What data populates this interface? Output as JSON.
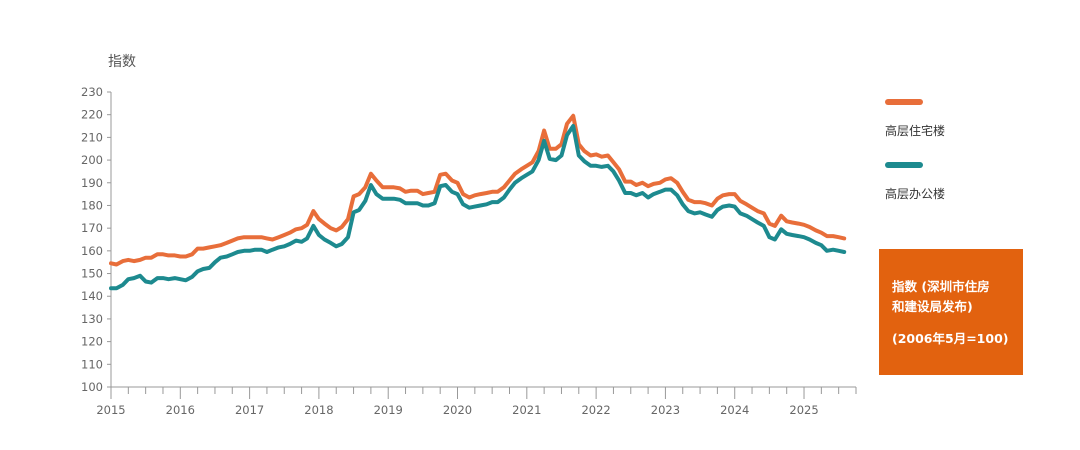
{
  "chart_data": {
    "type": "line",
    "ylabel": "指数",
    "ylim": [
      100,
      230
    ],
    "yticks": [
      100,
      110,
      120,
      130,
      140,
      150,
      160,
      170,
      180,
      190,
      200,
      210,
      220,
      230
    ],
    "xticks": [
      "2015",
      "2016",
      "2017",
      "2018",
      "2019",
      "2020",
      "2021",
      "2022",
      "2023",
      "2024",
      "2025"
    ],
    "x_start": 2015.0,
    "x_end": 2025.75,
    "series": [
      {
        "name": "高层住宅楼",
        "color": "#e86e3a",
        "points": [
          [
            2015.0,
            154.5
          ],
          [
            2015.08,
            154
          ],
          [
            2015.17,
            155.5
          ],
          [
            2015.25,
            156
          ],
          [
            2015.33,
            155.5
          ],
          [
            2015.42,
            156
          ],
          [
            2015.5,
            157
          ],
          [
            2015.58,
            157
          ],
          [
            2015.67,
            158.5
          ],
          [
            2015.75,
            158.5
          ],
          [
            2015.83,
            158
          ],
          [
            2015.92,
            158
          ],
          [
            2016.0,
            157.5
          ],
          [
            2016.08,
            157.5
          ],
          [
            2016.17,
            158.5
          ],
          [
            2016.25,
            161
          ],
          [
            2016.33,
            161
          ],
          [
            2016.42,
            161.5
          ],
          [
            2016.5,
            162
          ],
          [
            2016.58,
            162.5
          ],
          [
            2016.67,
            163.5
          ],
          [
            2016.75,
            164.5
          ],
          [
            2016.83,
            165.5
          ],
          [
            2016.92,
            166
          ],
          [
            2017.0,
            166
          ],
          [
            2017.08,
            166
          ],
          [
            2017.17,
            166
          ],
          [
            2017.25,
            165.5
          ],
          [
            2017.33,
            165
          ],
          [
            2017.42,
            166
          ],
          [
            2017.5,
            167
          ],
          [
            2017.58,
            168
          ],
          [
            2017.67,
            169.5
          ],
          [
            2017.75,
            170
          ],
          [
            2017.83,
            171.5
          ],
          [
            2017.92,
            177.5
          ],
          [
            2018.0,
            174
          ],
          [
            2018.08,
            172
          ],
          [
            2018.17,
            170
          ],
          [
            2018.25,
            169
          ],
          [
            2018.33,
            170.5
          ],
          [
            2018.42,
            174
          ],
          [
            2018.5,
            184
          ],
          [
            2018.58,
            185
          ],
          [
            2018.67,
            188
          ],
          [
            2018.75,
            194
          ],
          [
            2018.83,
            191
          ],
          [
            2018.92,
            188
          ],
          [
            2019.0,
            188
          ],
          [
            2019.08,
            188
          ],
          [
            2019.17,
            187.5
          ],
          [
            2019.25,
            186
          ],
          [
            2019.33,
            186.5
          ],
          [
            2019.42,
            186.5
          ],
          [
            2019.5,
            185
          ],
          [
            2019.58,
            185.5
          ],
          [
            2019.67,
            186
          ],
          [
            2019.75,
            193.5
          ],
          [
            2019.83,
            194
          ],
          [
            2019.92,
            191
          ],
          [
            2020.0,
            190
          ],
          [
            2020.08,
            185
          ],
          [
            2020.17,
            183.5
          ],
          [
            2020.25,
            184.5
          ],
          [
            2020.33,
            185
          ],
          [
            2020.42,
            185.5
          ],
          [
            2020.5,
            186
          ],
          [
            2020.58,
            186
          ],
          [
            2020.67,
            188
          ],
          [
            2020.75,
            191
          ],
          [
            2020.83,
            194
          ],
          [
            2020.92,
            196
          ],
          [
            2021.0,
            197.5
          ],
          [
            2021.08,
            199
          ],
          [
            2021.17,
            204
          ],
          [
            2021.25,
            213
          ],
          [
            2021.33,
            205
          ],
          [
            2021.42,
            205
          ],
          [
            2021.5,
            207
          ],
          [
            2021.58,
            216
          ],
          [
            2021.67,
            219.5
          ],
          [
            2021.75,
            207
          ],
          [
            2021.83,
            204
          ],
          [
            2021.92,
            202
          ],
          [
            2022.0,
            202.5
          ],
          [
            2022.08,
            201.5
          ],
          [
            2022.17,
            202
          ],
          [
            2022.25,
            199
          ],
          [
            2022.33,
            196
          ],
          [
            2022.42,
            190.5
          ],
          [
            2022.5,
            190.5
          ],
          [
            2022.58,
            189
          ],
          [
            2022.67,
            190
          ],
          [
            2022.75,
            188.5
          ],
          [
            2022.83,
            189.5
          ],
          [
            2022.92,
            190
          ],
          [
            2023.0,
            191.5
          ],
          [
            2023.08,
            192
          ],
          [
            2023.17,
            190
          ],
          [
            2023.25,
            186
          ],
          [
            2023.33,
            182.5
          ],
          [
            2023.42,
            181.5
          ],
          [
            2023.5,
            181.5
          ],
          [
            2023.58,
            181
          ],
          [
            2023.67,
            180
          ],
          [
            2023.75,
            183
          ],
          [
            2023.83,
            184.5
          ],
          [
            2023.92,
            185
          ],
          [
            2024.0,
            185
          ],
          [
            2024.08,
            182
          ],
          [
            2024.17,
            180.5
          ],
          [
            2024.25,
            179
          ],
          [
            2024.33,
            177.5
          ],
          [
            2024.42,
            176.5
          ],
          [
            2024.5,
            172
          ],
          [
            2024.58,
            171
          ],
          [
            2024.67,
            175.5
          ],
          [
            2024.75,
            173
          ],
          [
            2024.83,
            172.5
          ],
          [
            2024.92,
            172
          ],
          [
            2025.0,
            171.5
          ],
          [
            2025.08,
            170.5
          ],
          [
            2025.17,
            169
          ],
          [
            2025.25,
            168
          ],
          [
            2025.33,
            166.5
          ],
          [
            2025.42,
            166.5
          ],
          [
            2025.5,
            166
          ],
          [
            2025.58,
            165.5
          ]
        ]
      },
      {
        "name": "高层办公楼",
        "color": "#1d8a8f",
        "points": [
          [
            2015.0,
            143.5
          ],
          [
            2015.08,
            143.5
          ],
          [
            2015.17,
            145
          ],
          [
            2015.25,
            147.5
          ],
          [
            2015.33,
            148
          ],
          [
            2015.42,
            149
          ],
          [
            2015.5,
            146.5
          ],
          [
            2015.58,
            146
          ],
          [
            2015.67,
            148
          ],
          [
            2015.75,
            148
          ],
          [
            2015.83,
            147.5
          ],
          [
            2015.92,
            148
          ],
          [
            2016.0,
            147.5
          ],
          [
            2016.08,
            147
          ],
          [
            2016.17,
            148.5
          ],
          [
            2016.25,
            151
          ],
          [
            2016.33,
            152
          ],
          [
            2016.42,
            152.5
          ],
          [
            2016.5,
            155
          ],
          [
            2016.58,
            157
          ],
          [
            2016.67,
            157.5
          ],
          [
            2016.75,
            158.5
          ],
          [
            2016.83,
            159.5
          ],
          [
            2016.92,
            160
          ],
          [
            2017.0,
            160
          ],
          [
            2017.08,
            160.5
          ],
          [
            2017.17,
            160.5
          ],
          [
            2017.25,
            159.5
          ],
          [
            2017.33,
            160.5
          ],
          [
            2017.42,
            161.5
          ],
          [
            2017.5,
            162
          ],
          [
            2017.58,
            163
          ],
          [
            2017.67,
            164.5
          ],
          [
            2017.75,
            164
          ],
          [
            2017.83,
            165.5
          ],
          [
            2017.92,
            171
          ],
          [
            2018.0,
            167
          ],
          [
            2018.08,
            165
          ],
          [
            2018.17,
            163.5
          ],
          [
            2018.25,
            162
          ],
          [
            2018.33,
            163
          ],
          [
            2018.42,
            166
          ],
          [
            2018.5,
            177
          ],
          [
            2018.58,
            178
          ],
          [
            2018.67,
            182
          ],
          [
            2018.75,
            189
          ],
          [
            2018.83,
            185
          ],
          [
            2018.92,
            183
          ],
          [
            2019.0,
            183
          ],
          [
            2019.08,
            183
          ],
          [
            2019.17,
            182.5
          ],
          [
            2019.25,
            181
          ],
          [
            2019.33,
            181
          ],
          [
            2019.42,
            181
          ],
          [
            2019.5,
            180
          ],
          [
            2019.58,
            180
          ],
          [
            2019.67,
            181
          ],
          [
            2019.75,
            188.5
          ],
          [
            2019.83,
            189
          ],
          [
            2019.92,
            186
          ],
          [
            2020.0,
            185
          ],
          [
            2020.08,
            180.5
          ],
          [
            2020.17,
            179
          ],
          [
            2020.25,
            179.5
          ],
          [
            2020.33,
            180
          ],
          [
            2020.42,
            180.5
          ],
          [
            2020.5,
            181.5
          ],
          [
            2020.58,
            181.5
          ],
          [
            2020.67,
            183.5
          ],
          [
            2020.75,
            187
          ],
          [
            2020.83,
            190
          ],
          [
            2020.92,
            192
          ],
          [
            2021.0,
            193.5
          ],
          [
            2021.08,
            195
          ],
          [
            2021.17,
            200
          ],
          [
            2021.25,
            208.5
          ],
          [
            2021.33,
            200.5
          ],
          [
            2021.42,
            200
          ],
          [
            2021.5,
            202
          ],
          [
            2021.58,
            211
          ],
          [
            2021.67,
            215
          ],
          [
            2021.75,
            202
          ],
          [
            2021.83,
            199.5
          ],
          [
            2021.92,
            197.5
          ],
          [
            2022.0,
            197.5
          ],
          [
            2022.08,
            197
          ],
          [
            2022.17,
            197.5
          ],
          [
            2022.25,
            195
          ],
          [
            2022.33,
            191
          ],
          [
            2022.42,
            185.5
          ],
          [
            2022.5,
            185.5
          ],
          [
            2022.58,
            184.5
          ],
          [
            2022.67,
            185.5
          ],
          [
            2022.75,
            183.5
          ],
          [
            2022.83,
            185
          ],
          [
            2022.92,
            186
          ],
          [
            2023.0,
            187
          ],
          [
            2023.08,
            187
          ],
          [
            2023.17,
            184.5
          ],
          [
            2023.25,
            180.5
          ],
          [
            2023.33,
            177.5
          ],
          [
            2023.42,
            176.5
          ],
          [
            2023.5,
            177
          ],
          [
            2023.58,
            176
          ],
          [
            2023.67,
            175
          ],
          [
            2023.75,
            178
          ],
          [
            2023.83,
            179.5
          ],
          [
            2023.92,
            180
          ],
          [
            2024.0,
            179.5
          ],
          [
            2024.08,
            176.5
          ],
          [
            2024.17,
            175.5
          ],
          [
            2024.25,
            174
          ],
          [
            2024.33,
            172.5
          ],
          [
            2024.42,
            171
          ],
          [
            2024.5,
            166
          ],
          [
            2024.58,
            165
          ],
          [
            2024.67,
            169.5
          ],
          [
            2024.75,
            167.5
          ],
          [
            2024.83,
            167
          ],
          [
            2024.92,
            166.5
          ],
          [
            2025.0,
            166
          ],
          [
            2025.08,
            165
          ],
          [
            2025.17,
            163.5
          ],
          [
            2025.25,
            162.5
          ],
          [
            2025.33,
            160
          ],
          [
            2025.42,
            160.5
          ],
          [
            2025.5,
            160
          ],
          [
            2025.58,
            159.5
          ]
        ]
      }
    ]
  },
  "legend": [
    {
      "label": "高层住宅楼",
      "color": "#e86e3a"
    },
    {
      "label": "高层办公楼",
      "color": "#1d8a8f"
    }
  ],
  "note": {
    "line1": "指数 (深圳市住房",
    "line2": "和建设局发布)",
    "line3": "(2006年5月=100)",
    "bg_color": "#e2620f"
  }
}
